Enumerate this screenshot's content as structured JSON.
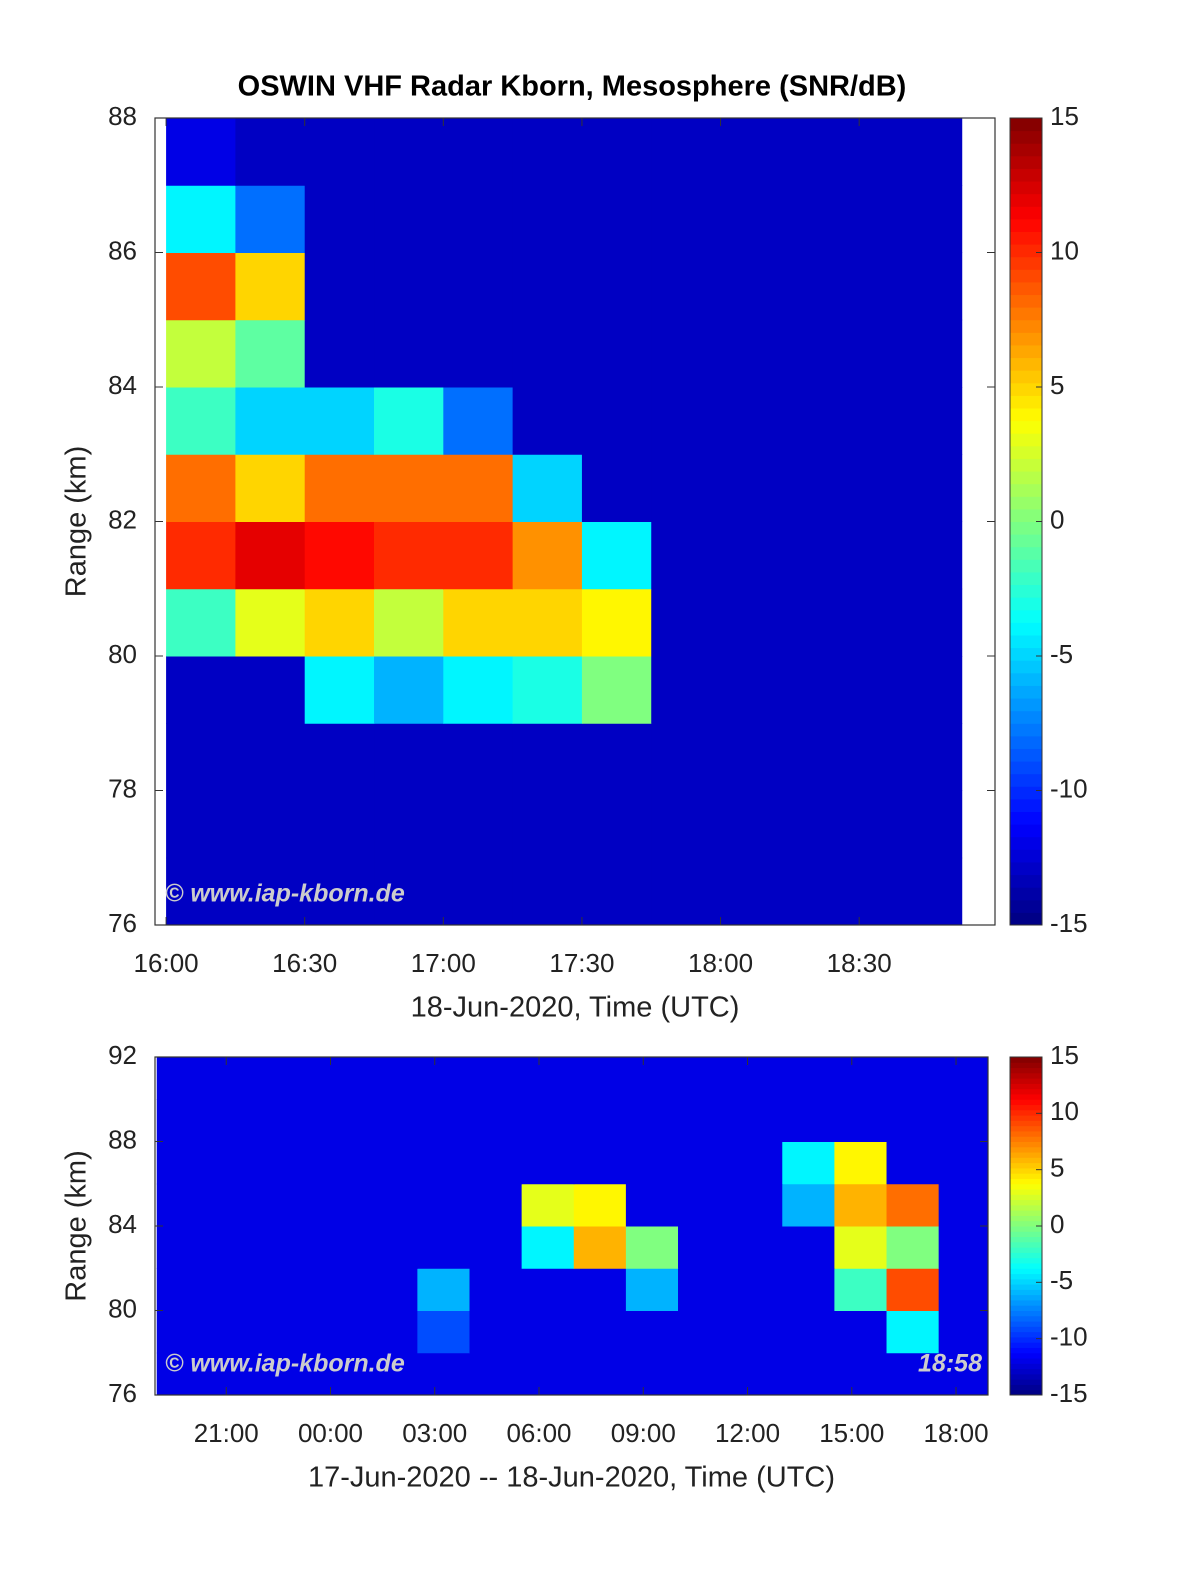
{
  "chart_data": [
    {
      "type": "heatmap",
      "title": "OSWIN VHF Radar Kborn, Mesosphere (SNR/dB)",
      "xlabel": "18-Jun-2020, Time (UTC)",
      "ylabel": "Range (km)",
      "watermark": "© www.iap-kborn.de",
      "colormap": "jet",
      "clim": [
        -15,
        15
      ],
      "cticks": [
        -15,
        -10,
        -5,
        0,
        5,
        10,
        15
      ],
      "xlim": [
        15.96,
        18.99
      ],
      "ylim": [
        76,
        88
      ],
      "xticks": [
        {
          "value": 16,
          "label": "16:00"
        },
        {
          "value": 16.5,
          "label": "16:30"
        },
        {
          "value": 17,
          "label": "17:00"
        },
        {
          "value": 17.5,
          "label": "17:30"
        },
        {
          "value": 18,
          "label": "18:00"
        },
        {
          "value": 18.5,
          "label": "18:30"
        }
      ],
      "yticks": [
        76,
        78,
        80,
        82,
        84,
        86,
        88
      ],
      "xbins": [
        16,
        16.25,
        16.5,
        16.75,
        17,
        17.25,
        17.5,
        17.75,
        18,
        18.25,
        18.5,
        18.75,
        18.87
      ],
      "ybins": [
        76,
        77,
        78,
        79,
        80,
        81,
        82,
        83,
        84,
        85,
        86,
        87,
        88
      ],
      "z": [
        [
          -13,
          -13,
          -13,
          -13,
          -13,
          -13,
          -13,
          -13,
          -13,
          -13,
          -13,
          -13
        ],
        [
          -13,
          -13,
          -13,
          -13,
          -13,
          -13,
          -13,
          -13,
          -13,
          -13,
          -13,
          -13
        ],
        [
          -13,
          -13,
          -13,
          -13,
          -13,
          -13,
          -13,
          -13,
          -13,
          -13,
          -13,
          -13
        ],
        [
          -13,
          -13,
          -4,
          -6,
          -4,
          -3,
          0,
          -13,
          -13,
          -13,
          -13,
          -13
        ],
        [
          -2,
          3,
          5,
          2,
          5,
          5,
          4,
          -13,
          -13,
          -13,
          -13,
          -13
        ],
        [
          10,
          12,
          11,
          10,
          10,
          7,
          -4,
          -13,
          -13,
          -13,
          -13,
          -13
        ],
        [
          8,
          5,
          8,
          8,
          8,
          -5,
          -13,
          -13,
          -13,
          -13,
          -13,
          -13
        ],
        [
          -2,
          -5,
          -5,
          -3,
          -8,
          -13,
          -13,
          -13,
          -13,
          -13,
          -13,
          -13
        ],
        [
          2,
          -1,
          -13,
          -13,
          -13,
          -13,
          -13,
          -13,
          -13,
          -13,
          -13,
          -13
        ],
        [
          9,
          5,
          -13,
          -13,
          -13,
          -13,
          -13,
          -13,
          -13,
          -13,
          -13,
          -13
        ],
        [
          -4,
          -8,
          -13,
          -13,
          -13,
          -13,
          -13,
          -13,
          -13,
          -13,
          -13,
          -13
        ],
        [
          -12,
          -13,
          -13,
          -13,
          -13,
          -13,
          -13,
          -13,
          -13,
          -13,
          -13,
          -13
        ]
      ]
    },
    {
      "type": "heatmap",
      "xlabel": "17-Jun-2020 -- 18-Jun-2020, Time (UTC)",
      "ylabel": "Range (km)",
      "watermark": "© www.iap-kborn.de",
      "timestamp": "18:58",
      "colormap": "jet",
      "clim": [
        -15,
        15
      ],
      "cticks": [
        -15,
        -10,
        -5,
        0,
        5,
        10,
        15
      ],
      "xlim": [
        18.95,
        42.92
      ],
      "ylim": [
        76,
        92
      ],
      "xticks": [
        {
          "value": 21,
          "label": "21:00"
        },
        {
          "value": 24,
          "label": "00:00"
        },
        {
          "value": 27,
          "label": "03:00"
        },
        {
          "value": 30,
          "label": "06:00"
        },
        {
          "value": 33,
          "label": "09:00"
        },
        {
          "value": 36,
          "label": "12:00"
        },
        {
          "value": 39,
          "label": "15:00"
        },
        {
          "value": 42,
          "label": "18:00"
        }
      ],
      "yticks": [
        76,
        80,
        84,
        88,
        92
      ],
      "xbins": [
        19,
        20.5,
        22,
        23.5,
        25,
        26.5,
        28,
        29.5,
        31,
        32.5,
        34,
        35.5,
        37,
        38.5,
        40,
        41.5,
        42.92
      ],
      "ybins": [
        76,
        78,
        80,
        82,
        84,
        86,
        88,
        90,
        92
      ],
      "z": [
        [
          -12,
          -12,
          -12,
          -12,
          -12,
          -12,
          -12,
          -12,
          -12,
          -12,
          -12,
          -12,
          -12,
          -12,
          -12,
          -12
        ],
        [
          -12,
          -12,
          -12,
          -12,
          -12,
          -9,
          -12,
          -12,
          -12,
          -12,
          -12,
          -12,
          -12,
          -12,
          -4,
          -12
        ],
        [
          -12,
          -12,
          -12,
          -12,
          -12,
          -6,
          -12,
          -12,
          -12,
          -6,
          -12,
          -12,
          -12,
          -2,
          9,
          -12
        ],
        [
          -12,
          -12,
          -12,
          -12,
          -12,
          -12,
          -12,
          -4,
          6,
          0,
          -12,
          -12,
          -12,
          3,
          0,
          -12
        ],
        [
          -12,
          -12,
          -12,
          -12,
          -12,
          -12,
          -12,
          3,
          4,
          -12,
          -12,
          -12,
          -6,
          6,
          8,
          -12
        ],
        [
          -12,
          -12,
          -12,
          -12,
          -12,
          -12,
          -12,
          -12,
          -12,
          -12,
          -12,
          -12,
          -4,
          4,
          -12,
          -12
        ],
        [
          -12,
          -12,
          -12,
          -12,
          -12,
          -12,
          -12,
          -12,
          -12,
          -12,
          -12,
          -12,
          -12,
          -12,
          -12,
          -12
        ],
        [
          -12,
          -12,
          -12,
          -12,
          -12,
          -12,
          -12,
          -12,
          -12,
          -12,
          -12,
          -12,
          -12,
          -12,
          -12,
          -12
        ]
      ]
    }
  ]
}
